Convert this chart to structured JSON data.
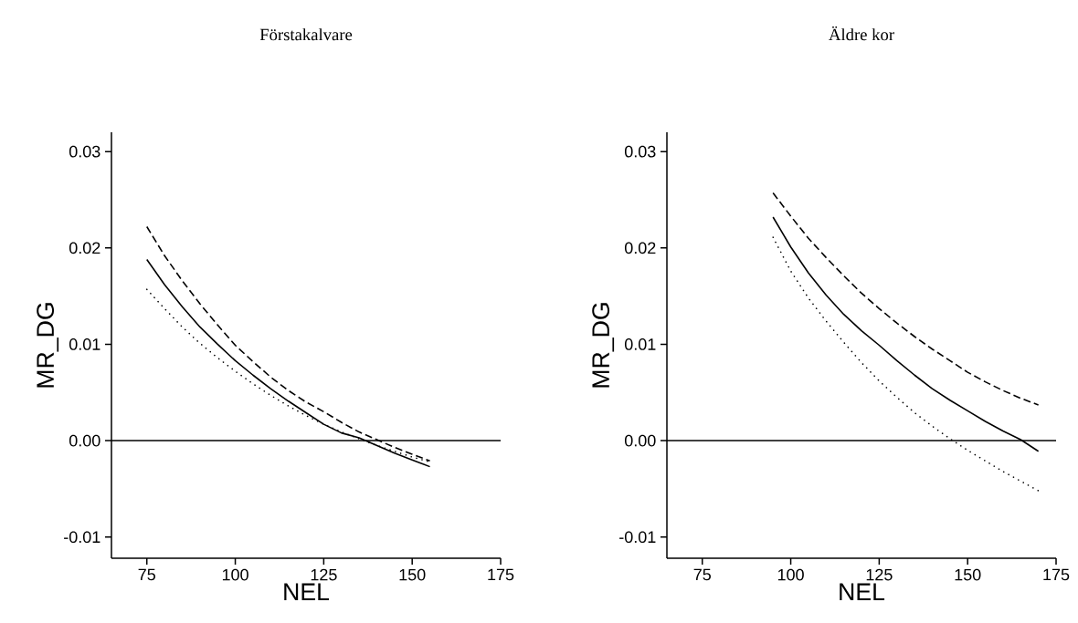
{
  "chart_data": [
    {
      "type": "line",
      "title": "Förstakalvare",
      "xlabel": "NEL",
      "ylabel": "MR_DG",
      "x": [
        75,
        80,
        85,
        90,
        95,
        100,
        105,
        110,
        115,
        120,
        125,
        130,
        135,
        140,
        145,
        150,
        155
      ],
      "series": [
        {
          "color": "#000000",
          "line_style": "solid",
          "values": [
            0.0188,
            0.0162,
            0.0139,
            0.0118,
            0.01,
            0.0083,
            0.0068,
            0.0054,
            0.0041,
            0.0029,
            0.0017,
            0.0008,
            0.0003,
            -0.0005,
            -0.0013,
            -0.002,
            -0.0027
          ]
        },
        {
          "color": "#000000",
          "line_style": "dashed",
          "values": [
            0.0222,
            0.0192,
            0.0166,
            0.0142,
            0.012,
            0.0099,
            0.0082,
            0.0066,
            0.0052,
            0.004,
            0.003,
            0.0019,
            0.0009,
            0.0001,
            -0.0007,
            -0.0014,
            -0.0021
          ]
        },
        {
          "color": "#000000",
          "line_style": "dotted",
          "values": [
            0.0157,
            0.0137,
            0.0118,
            0.0101,
            0.0086,
            0.0072,
            0.0059,
            0.0047,
            0.0036,
            0.0026,
            0.0017,
            0.0009,
            0.0002,
            -0.0005,
            -0.0011,
            -0.0017,
            -0.0022
          ]
        }
      ],
      "xlim": [
        65,
        175
      ],
      "xticks": [
        75,
        100,
        125,
        150,
        175
      ],
      "ylim": [
        -0.0122,
        0.032
      ],
      "yticks": [
        -0.01,
        {
          "value": 0,
          "label": "0.00"
        },
        0.01,
        0.02,
        0.03
      ],
      "ref_lines": [
        {
          "axis": "y",
          "value": 0,
          "color": "#000000"
        }
      ]
    },
    {
      "type": "line",
      "title": "Äldre kor",
      "xlabel": "NEL",
      "ylabel": "MR_DG",
      "x": [
        95,
        100,
        105,
        110,
        115,
        120,
        125,
        130,
        135,
        140,
        145,
        150,
        155,
        160,
        165,
        170
      ],
      "series": [
        {
          "color": "#000000",
          "line_style": "solid",
          "values": [
            0.0232,
            0.0201,
            0.0174,
            0.0151,
            0.0131,
            0.0114,
            0.0099,
            0.0083,
            0.0068,
            0.0054,
            0.0042,
            0.0031,
            0.002,
            0.001,
            0.0001,
            -0.0011
          ]
        },
        {
          "color": "#000000",
          "line_style": "dashed",
          "values": [
            0.0257,
            0.0233,
            0.021,
            0.019,
            0.0171,
            0.0153,
            0.0137,
            0.0122,
            0.0108,
            0.0095,
            0.0083,
            0.0071,
            0.0061,
            0.0052,
            0.0044,
            0.0037
          ]
        },
        {
          "color": "#000000",
          "line_style": "dotted",
          "values": [
            0.0211,
            0.0176,
            0.0148,
            0.0124,
            0.0102,
            0.0081,
            0.0062,
            0.0045,
            0.0029,
            0.0015,
            0.0002,
            -0.001,
            -0.0021,
            -0.0032,
            -0.0042,
            -0.0052
          ]
        }
      ],
      "xlim": [
        65,
        175
      ],
      "xticks": [
        75,
        100,
        125,
        150,
        175
      ],
      "ylim": [
        -0.0122,
        0.032
      ],
      "yticks": [
        -0.01,
        {
          "value": 0,
          "label": "0.00"
        },
        0.01,
        0.02,
        0.03
      ],
      "ref_lines": [
        {
          "axis": "y",
          "value": 0,
          "color": "#000000"
        }
      ]
    }
  ]
}
